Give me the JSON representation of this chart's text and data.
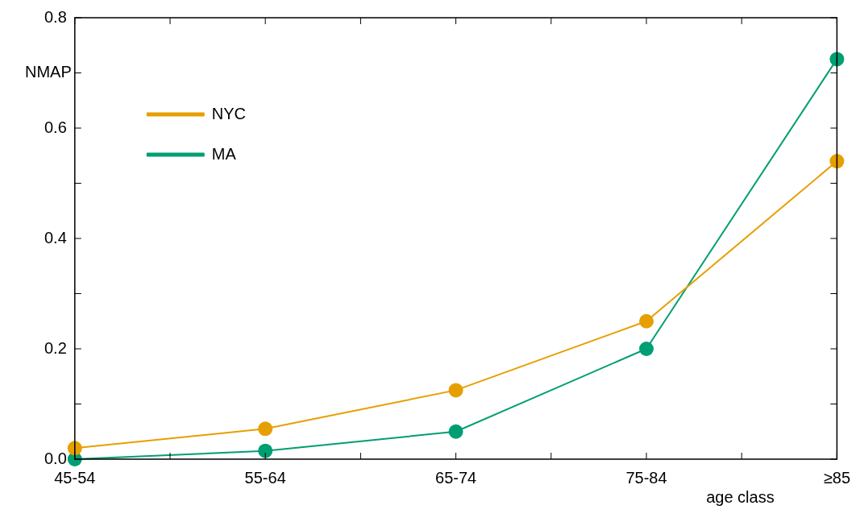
{
  "chart_data": {
    "type": "line",
    "xlabel": "age class",
    "ylabel": "NMAP",
    "categories": [
      "45-54",
      "55-64",
      "65-74",
      "75-84",
      "≥85"
    ],
    "series": [
      {
        "name": "NYC",
        "color": "#e69f00",
        "values": [
          0.02,
          0.055,
          0.125,
          0.25,
          0.54
        ]
      },
      {
        "name": "MA",
        "color": "#009e73",
        "values": [
          0.0,
          0.015,
          0.05,
          0.2,
          0.725
        ]
      }
    ],
    "ylim": [
      0,
      0.8
    ],
    "yticks": [
      {
        "value": 0,
        "label": "0.0"
      },
      {
        "value": 0.1,
        "label": null
      },
      0.2,
      {
        "value": 0.3,
        "label": null
      },
      0.4,
      {
        "value": 0.5,
        "label": null
      },
      0.6,
      {
        "value": 0.7,
        "label": null
      },
      0.8
    ],
    "grid": false,
    "legend": "top left",
    "marker": "circle",
    "line_style": "solid"
  }
}
